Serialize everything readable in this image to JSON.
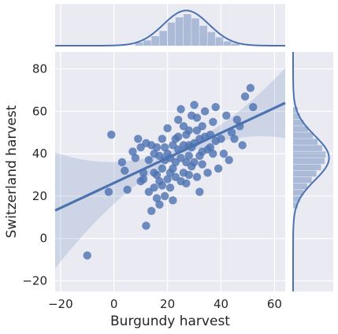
{
  "chart_data": {
    "type": "scatter",
    "subtype": "jointplot-regression",
    "xlabel": "Burgundy harvest",
    "ylabel": "Switzerland harvest",
    "xlim": [
      -22,
      64
    ],
    "ylim": [
      -25,
      88
    ],
    "xticks": [
      -20,
      0,
      20,
      40,
      60
    ],
    "yticks": [
      -20,
      0,
      20,
      40,
      60,
      80
    ],
    "grid": true,
    "style": {
      "background": "#eaeaf2",
      "grid_color": "#ffffff",
      "point_color": "#4c72b0",
      "line_color": "#4c72b0"
    },
    "regression": {
      "slope": 0.59,
      "intercept": 26.2,
      "confidence_band": true
    },
    "marginal_x": {
      "bin_edges": [
        8,
        11,
        14,
        17,
        20,
        23,
        26,
        29,
        32,
        35,
        38,
        41,
        44,
        47
      ],
      "counts": [
        3,
        5,
        9,
        14,
        22,
        27,
        30,
        26,
        19,
        13,
        8,
        4,
        2
      ],
      "kde": true
    },
    "marginal_y": {
      "bin_edges": [
        14,
        17,
        20,
        23,
        26,
        29,
        32,
        35,
        38,
        41,
        44,
        47,
        50,
        53,
        56,
        59,
        62
      ],
      "counts": [
        4,
        6,
        9,
        12,
        16,
        20,
        24,
        27,
        28,
        25,
        21,
        17,
        13,
        9,
        6,
        4
      ],
      "kde": true
    },
    "points": [
      [
        -10,
        -8
      ],
      [
        -1,
        49
      ],
      [
        -2,
        22
      ],
      [
        3,
        36
      ],
      [
        5,
        23
      ],
      [
        4,
        32
      ],
      [
        7,
        41
      ],
      [
        8,
        38
      ],
      [
        9,
        47
      ],
      [
        10,
        43
      ],
      [
        11,
        28
      ],
      [
        12,
        6
      ],
      [
        13,
        37
      ],
      [
        14,
        44
      ],
      [
        15,
        31
      ],
      [
        16,
        19
      ],
      [
        17,
        27
      ],
      [
        18,
        47
      ],
      [
        19,
        43
      ],
      [
        20,
        40
      ],
      [
        21,
        24
      ],
      [
        22,
        33
      ],
      [
        23,
        47
      ],
      [
        24,
        56
      ],
      [
        25,
        61
      ],
      [
        26,
        53
      ],
      [
        27,
        36
      ],
      [
        28,
        44
      ],
      [
        29,
        58
      ],
      [
        30,
        63
      ],
      [
        31,
        51
      ],
      [
        32,
        39
      ],
      [
        33,
        53
      ],
      [
        34,
        60
      ],
      [
        35,
        42
      ],
      [
        36,
        49
      ],
      [
        37,
        55
      ],
      [
        38,
        62
      ],
      [
        39,
        33
      ],
      [
        40,
        47
      ],
      [
        42,
        58
      ],
      [
        44,
        50
      ],
      [
        46,
        56
      ],
      [
        49,
        67
      ],
      [
        51,
        71
      ],
      [
        24,
        42
      ],
      [
        25,
        38
      ],
      [
        26,
        31
      ],
      [
        27,
        49
      ],
      [
        28,
        39
      ],
      [
        29,
        34
      ],
      [
        30,
        45
      ],
      [
        31,
        29
      ],
      [
        32,
        47
      ],
      [
        33,
        41
      ],
      [
        23,
        29
      ],
      [
        22,
        44
      ],
      [
        21,
        38
      ],
      [
        20,
        28
      ],
      [
        19,
        20
      ],
      [
        18,
        33
      ],
      [
        17,
        39
      ],
      [
        16,
        43
      ],
      [
        15,
        24
      ],
      [
        14,
        13
      ],
      [
        13,
        22
      ],
      [
        12,
        45
      ],
      [
        11,
        31
      ],
      [
        10,
        27
      ],
      [
        26,
        44
      ],
      [
        27,
        26
      ],
      [
        28,
        51
      ],
      [
        29,
        43
      ],
      [
        30,
        36
      ],
      [
        31,
        57
      ],
      [
        32,
        22
      ],
      [
        33,
        35
      ],
      [
        34,
        48
      ],
      [
        35,
        31
      ],
      [
        36,
        43
      ],
      [
        37,
        40
      ],
      [
        38,
        46
      ],
      [
        41,
        40
      ],
      [
        43,
        37
      ],
      [
        45,
        47
      ],
      [
        47,
        53
      ],
      [
        48,
        44
      ],
      [
        52,
        62
      ],
      [
        24,
        48
      ],
      [
        25,
        27
      ],
      [
        20,
        52
      ],
      [
        21,
        31
      ],
      [
        22,
        18
      ],
      [
        23,
        36
      ],
      [
        19,
        37
      ],
      [
        18,
        25
      ],
      [
        17,
        16
      ],
      [
        16,
        30
      ],
      [
        15,
        40
      ],
      [
        28,
        30
      ]
    ]
  }
}
